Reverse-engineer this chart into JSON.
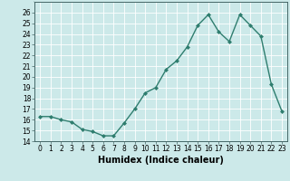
{
  "x": [
    0,
    1,
    2,
    3,
    4,
    5,
    6,
    7,
    8,
    9,
    10,
    11,
    12,
    13,
    14,
    15,
    16,
    17,
    18,
    19,
    20,
    21,
    22,
    23
  ],
  "y": [
    16.3,
    16.3,
    16.0,
    15.8,
    15.1,
    14.9,
    14.5,
    14.5,
    15.7,
    17.0,
    18.5,
    19.0,
    20.7,
    21.5,
    22.8,
    24.8,
    25.8,
    24.2,
    23.3,
    25.8,
    24.8,
    23.8,
    19.3,
    16.8
  ],
  "line_color": "#2e7d6e",
  "marker": "D",
  "marker_size": 2.0,
  "line_width": 1.0,
  "xlabel": "Humidex (Indice chaleur)",
  "xlim": [
    -0.5,
    23.5
  ],
  "ylim": [
    14,
    27
  ],
  "yticks": [
    14,
    15,
    16,
    17,
    18,
    19,
    20,
    21,
    22,
    23,
    24,
    25,
    26
  ],
  "xticks": [
    0,
    1,
    2,
    3,
    4,
    5,
    6,
    7,
    8,
    9,
    10,
    11,
    12,
    13,
    14,
    15,
    16,
    17,
    18,
    19,
    20,
    21,
    22,
    23
  ],
  "background_color": "#cce9e9",
  "grid_color": "#ffffff",
  "tick_fontsize": 5.5,
  "xlabel_fontsize": 7.0
}
